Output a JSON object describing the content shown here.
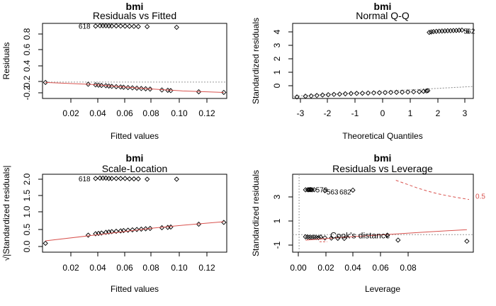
{
  "chart_data": [
    {
      "type": "scatter",
      "title": "bmi",
      "subtitle": "Residuals vs Fitted",
      "xlabel": "Fitted values",
      "ylabel": "Residuals",
      "xlim": [
        0.005,
        0.13
      ],
      "ylim": [
        -0.27,
        0.97
      ],
      "xticks": [
        "0.02",
        "0.04",
        "0.06",
        "0.08",
        "0.10",
        "0.12"
      ],
      "yticks": [
        "-0.2",
        "0.2",
        "0.4",
        "0.6",
        "0.8"
      ],
      "annotations": [
        "618"
      ],
      "points": [
        [
          0.007,
          -0.005
        ],
        [
          0.036,
          -0.035
        ],
        [
          0.041,
          -0.045
        ],
        [
          0.043,
          -0.05
        ],
        [
          0.045,
          -0.055
        ],
        [
          0.048,
          -0.06
        ],
        [
          0.05,
          -0.065
        ],
        [
          0.052,
          -0.07
        ],
        [
          0.055,
          -0.075
        ],
        [
          0.058,
          -0.08
        ],
        [
          0.06,
          -0.085
        ],
        [
          0.063,
          -0.09
        ],
        [
          0.066,
          -0.095
        ],
        [
          0.069,
          -0.1
        ],
        [
          0.072,
          -0.105
        ],
        [
          0.075,
          -0.11
        ],
        [
          0.078,
          -0.115
        ],
        [
          0.086,
          -0.13
        ],
        [
          0.09,
          -0.135
        ],
        [
          0.092,
          -0.14
        ],
        [
          0.111,
          -0.16
        ],
        [
          0.128,
          -0.17
        ],
        [
          0.041,
          0.925
        ],
        [
          0.044,
          0.93
        ],
        [
          0.046,
          0.93
        ],
        [
          0.048,
          0.93
        ],
        [
          0.05,
          0.928
        ],
        [
          0.052,
          0.926
        ],
        [
          0.055,
          0.928
        ],
        [
          0.058,
          0.926
        ],
        [
          0.061,
          0.924
        ],
        [
          0.064,
          0.922
        ],
        [
          0.067,
          0.92
        ],
        [
          0.07,
          0.918
        ],
        [
          0.076,
          0.916
        ],
        [
          0.096,
          0.905
        ]
      ],
      "smoother": [
        [
          0.007,
          -0.005
        ],
        [
          0.04,
          -0.04
        ],
        [
          0.06,
          -0.08
        ],
        [
          0.08,
          -0.115
        ],
        [
          0.1,
          -0.145
        ],
        [
          0.128,
          -0.17
        ]
      ],
      "refline_y": 0
    },
    {
      "type": "scatter",
      "title": "bmi",
      "subtitle": "Normal Q-Q",
      "xlabel": "Theoretical Quantiles",
      "ylabel": "Standardized residuals",
      "xlim": [
        -3.15,
        3.2
      ],
      "ylim": [
        -0.45,
        4.55
      ],
      "xticks": [
        "-3",
        "-2",
        "-1",
        "0",
        "1",
        "2",
        "3"
      ],
      "yticks": [
        "0",
        "1",
        "2",
        "3",
        "4"
      ],
      "annotations": [
        "5",
        "6",
        "62"
      ],
      "points": [
        [
          -3.0,
          -0.35
        ],
        [
          -2.7,
          -0.3
        ],
        [
          -2.5,
          -0.28
        ],
        [
          -2.3,
          -0.25
        ],
        [
          -2.1,
          -0.22
        ],
        [
          -1.9,
          -0.2
        ],
        [
          -1.7,
          -0.18
        ],
        [
          -1.5,
          -0.16
        ],
        [
          -1.3,
          -0.14
        ],
        [
          -1.1,
          -0.12
        ],
        [
          -0.9,
          -0.11
        ],
        [
          -0.7,
          -0.1
        ],
        [
          -0.5,
          -0.09
        ],
        [
          -0.3,
          -0.08
        ],
        [
          -0.1,
          -0.07
        ],
        [
          0.1,
          -0.06
        ],
        [
          0.3,
          -0.05
        ],
        [
          0.5,
          -0.04
        ],
        [
          0.7,
          -0.03
        ],
        [
          0.9,
          -0.02
        ],
        [
          1.1,
          -0.01
        ],
        [
          1.3,
          0.0
        ],
        [
          1.45,
          0.03
        ],
        [
          1.55,
          0.05
        ],
        [
          1.6,
          0.07
        ],
        [
          1.65,
          3.95
        ],
        [
          1.72,
          3.98
        ],
        [
          1.8,
          4.0
        ],
        [
          1.9,
          4.02
        ],
        [
          2.0,
          4.03
        ],
        [
          2.1,
          4.04
        ],
        [
          2.2,
          4.05
        ],
        [
          2.3,
          4.06
        ],
        [
          2.4,
          4.06
        ],
        [
          2.5,
          4.07
        ],
        [
          2.6,
          4.08
        ],
        [
          2.7,
          4.09
        ],
        [
          2.8,
          4.1
        ]
      ],
      "refline": [
        [
          -3.15,
          -0.3
        ],
        [
          3.2,
          0.35
        ]
      ]
    },
    {
      "type": "scatter",
      "title": "bmi",
      "subtitle": "Scale-Location",
      "xlabel": "Fitted values",
      "ylabel": "√|Standardized residuals|",
      "xlim": [
        0.005,
        0.13
      ],
      "ylim": [
        -0.08,
        2.12
      ],
      "xticks": [
        "0.02",
        "0.04",
        "0.06",
        "0.08",
        "0.10",
        "0.12"
      ],
      "yticks": [
        "0.0",
        "0.5",
        "1.0",
        "1.5",
        "2.0"
      ],
      "annotations": [
        "618"
      ],
      "points": [
        [
          0.007,
          0.17
        ],
        [
          0.036,
          0.4
        ],
        [
          0.041,
          0.44
        ],
        [
          0.043,
          0.45
        ],
        [
          0.045,
          0.46
        ],
        [
          0.048,
          0.48
        ],
        [
          0.05,
          0.49
        ],
        [
          0.052,
          0.5
        ],
        [
          0.055,
          0.51
        ],
        [
          0.058,
          0.52
        ],
        [
          0.06,
          0.53
        ],
        [
          0.063,
          0.54
        ],
        [
          0.066,
          0.55
        ],
        [
          0.069,
          0.56
        ],
        [
          0.072,
          0.57
        ],
        [
          0.075,
          0.58
        ],
        [
          0.078,
          0.59
        ],
        [
          0.086,
          0.61
        ],
        [
          0.09,
          0.62
        ],
        [
          0.092,
          0.63
        ],
        [
          0.111,
          0.71
        ],
        [
          0.128,
          0.76
        ],
        [
          0.041,
          2.0
        ],
        [
          0.044,
          2.01
        ],
        [
          0.046,
          2.01
        ],
        [
          0.048,
          2.01
        ],
        [
          0.05,
          2.0
        ],
        [
          0.052,
          2.0
        ],
        [
          0.055,
          2.0
        ],
        [
          0.058,
          2.0
        ],
        [
          0.061,
          2.0
        ],
        [
          0.064,
          1.99
        ],
        [
          0.067,
          1.99
        ],
        [
          0.07,
          1.99
        ],
        [
          0.076,
          1.98
        ],
        [
          0.096,
          1.98
        ]
      ],
      "smoother": [
        [
          0.007,
          0.24
        ],
        [
          0.04,
          0.4
        ],
        [
          0.06,
          0.5
        ],
        [
          0.08,
          0.6
        ],
        [
          0.1,
          0.68
        ],
        [
          0.128,
          0.78
        ]
      ]
    },
    {
      "type": "scatter",
      "title": "bmi",
      "subtitle": "Residuals vs Leverage",
      "xlabel": "Leverage",
      "ylabel": "Standardized residuals",
      "xlim": [
        -0.003,
        0.081
      ],
      "ylim": [
        -1.6,
        5.5
      ],
      "xticks": [
        "0.00",
        "0.02",
        "0.04",
        "0.06",
        "0.08"
      ],
      "yticks": [
        "-1",
        "1",
        "3"
      ],
      "annotations": [
        "579",
        "563",
        "682"
      ],
      "legend": "Cook's distance",
      "cook_label": "0.5",
      "points": [
        [
          0.003,
          4.08
        ],
        [
          0.004,
          4.09
        ],
        [
          0.005,
          4.1
        ],
        [
          0.006,
          4.08
        ],
        [
          0.007,
          4.09
        ],
        [
          0.0055,
          4.1
        ],
        [
          0.0045,
          4.09
        ],
        [
          0.012,
          4.0
        ],
        [
          0.025,
          4.05
        ],
        [
          0.003,
          -0.2
        ],
        [
          0.004,
          -0.22
        ],
        [
          0.005,
          -0.24
        ],
        [
          0.006,
          -0.25
        ],
        [
          0.007,
          -0.23
        ],
        [
          0.008,
          -0.26
        ],
        [
          0.009,
          -0.28
        ],
        [
          0.01,
          -0.22
        ],
        [
          0.012,
          -0.3
        ],
        [
          0.015,
          -0.32
        ],
        [
          0.018,
          -0.34
        ],
        [
          0.021,
          -0.35
        ],
        [
          0.041,
          -0.05
        ],
        [
          0.046,
          -0.5
        ],
        [
          0.078,
          -0.6
        ]
      ],
      "smoother": [
        [
          0.003,
          -0.5
        ],
        [
          0.02,
          -0.25
        ],
        [
          0.04,
          0.0
        ],
        [
          0.06,
          0.25
        ],
        [
          0.078,
          0.45
        ]
      ],
      "cook_curve": [
        [
          0.045,
          4.95
        ],
        [
          0.05,
          4.6
        ],
        [
          0.055,
          4.25
        ],
        [
          0.06,
          3.95
        ],
        [
          0.065,
          3.7
        ],
        [
          0.07,
          3.5
        ],
        [
          0.075,
          3.33
        ],
        [
          0.079,
          3.2
        ]
      ]
    }
  ]
}
